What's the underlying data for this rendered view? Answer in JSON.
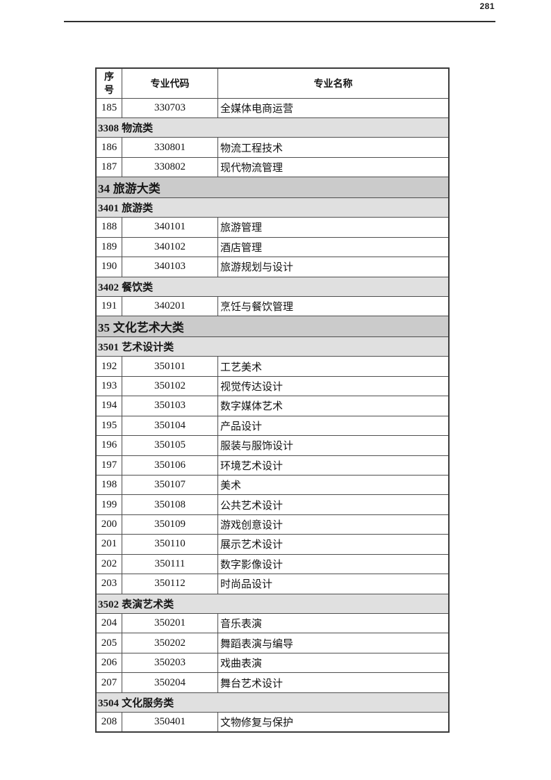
{
  "page": {
    "number": "281"
  },
  "table": {
    "headers": {
      "serial": "序\n号",
      "code": "专业代码",
      "name": "专业名称"
    },
    "rows": [
      {
        "type": "data",
        "no": "185",
        "code": "330703",
        "name": "全媒体电商运营"
      },
      {
        "type": "section",
        "level": "sub",
        "code": "3308",
        "label": "物流类"
      },
      {
        "type": "data",
        "no": "186",
        "code": "330801",
        "name": "物流工程技术"
      },
      {
        "type": "data",
        "no": "187",
        "code": "330802",
        "name": "现代物流管理"
      },
      {
        "type": "section",
        "level": "major",
        "code": "34",
        "label": "旅游大类"
      },
      {
        "type": "section",
        "level": "sub",
        "code": "3401",
        "label": "旅游类"
      },
      {
        "type": "data",
        "no": "188",
        "code": "340101",
        "name": "旅游管理"
      },
      {
        "type": "data",
        "no": "189",
        "code": "340102",
        "name": "酒店管理"
      },
      {
        "type": "data",
        "no": "190",
        "code": "340103",
        "name": "旅游规划与设计"
      },
      {
        "type": "section",
        "level": "sub",
        "code": "3402",
        "label": "餐饮类"
      },
      {
        "type": "data",
        "no": "191",
        "code": "340201",
        "name": "烹饪与餐饮管理"
      },
      {
        "type": "section",
        "level": "major",
        "code": "35",
        "label": "文化艺术大类"
      },
      {
        "type": "section",
        "level": "sub",
        "code": "3501",
        "label": "艺术设计类"
      },
      {
        "type": "data",
        "no": "192",
        "code": "350101",
        "name": "工艺美术"
      },
      {
        "type": "data",
        "no": "193",
        "code": "350102",
        "name": "视觉传达设计"
      },
      {
        "type": "data",
        "no": "194",
        "code": "350103",
        "name": "数字媒体艺术"
      },
      {
        "type": "data",
        "no": "195",
        "code": "350104",
        "name": "产品设计"
      },
      {
        "type": "data",
        "no": "196",
        "code": "350105",
        "name": "服装与服饰设计"
      },
      {
        "type": "data",
        "no": "197",
        "code": "350106",
        "name": "环境艺术设计"
      },
      {
        "type": "data",
        "no": "198",
        "code": "350107",
        "name": "美术"
      },
      {
        "type": "data",
        "no": "199",
        "code": "350108",
        "name": "公共艺术设计"
      },
      {
        "type": "data",
        "no": "200",
        "code": "350109",
        "name": "游戏创意设计"
      },
      {
        "type": "data",
        "no": "201",
        "code": "350110",
        "name": "展示艺术设计"
      },
      {
        "type": "data",
        "no": "202",
        "code": "350111",
        "name": "数字影像设计"
      },
      {
        "type": "data",
        "no": "203",
        "code": "350112",
        "name": "时尚品设计"
      },
      {
        "type": "section",
        "level": "sub",
        "code": "3502",
        "label": "表演艺术类"
      },
      {
        "type": "data",
        "no": "204",
        "code": "350201",
        "name": "音乐表演"
      },
      {
        "type": "data",
        "no": "205",
        "code": "350202",
        "name": "舞蹈表演与编导"
      },
      {
        "type": "data",
        "no": "206",
        "code": "350203",
        "name": "戏曲表演"
      },
      {
        "type": "data",
        "no": "207",
        "code": "350204",
        "name": "舞台艺术设计"
      },
      {
        "type": "section",
        "level": "sub",
        "code": "3504",
        "label": "文化服务类"
      },
      {
        "type": "data",
        "no": "208",
        "code": "350401",
        "name": "文物修复与保护"
      }
    ]
  },
  "colors": {
    "section_major_bg": "#cbcbcb",
    "section_sub_bg": "#e0e0e0",
    "border": "#4d4d4d",
    "text": "#111111"
  }
}
